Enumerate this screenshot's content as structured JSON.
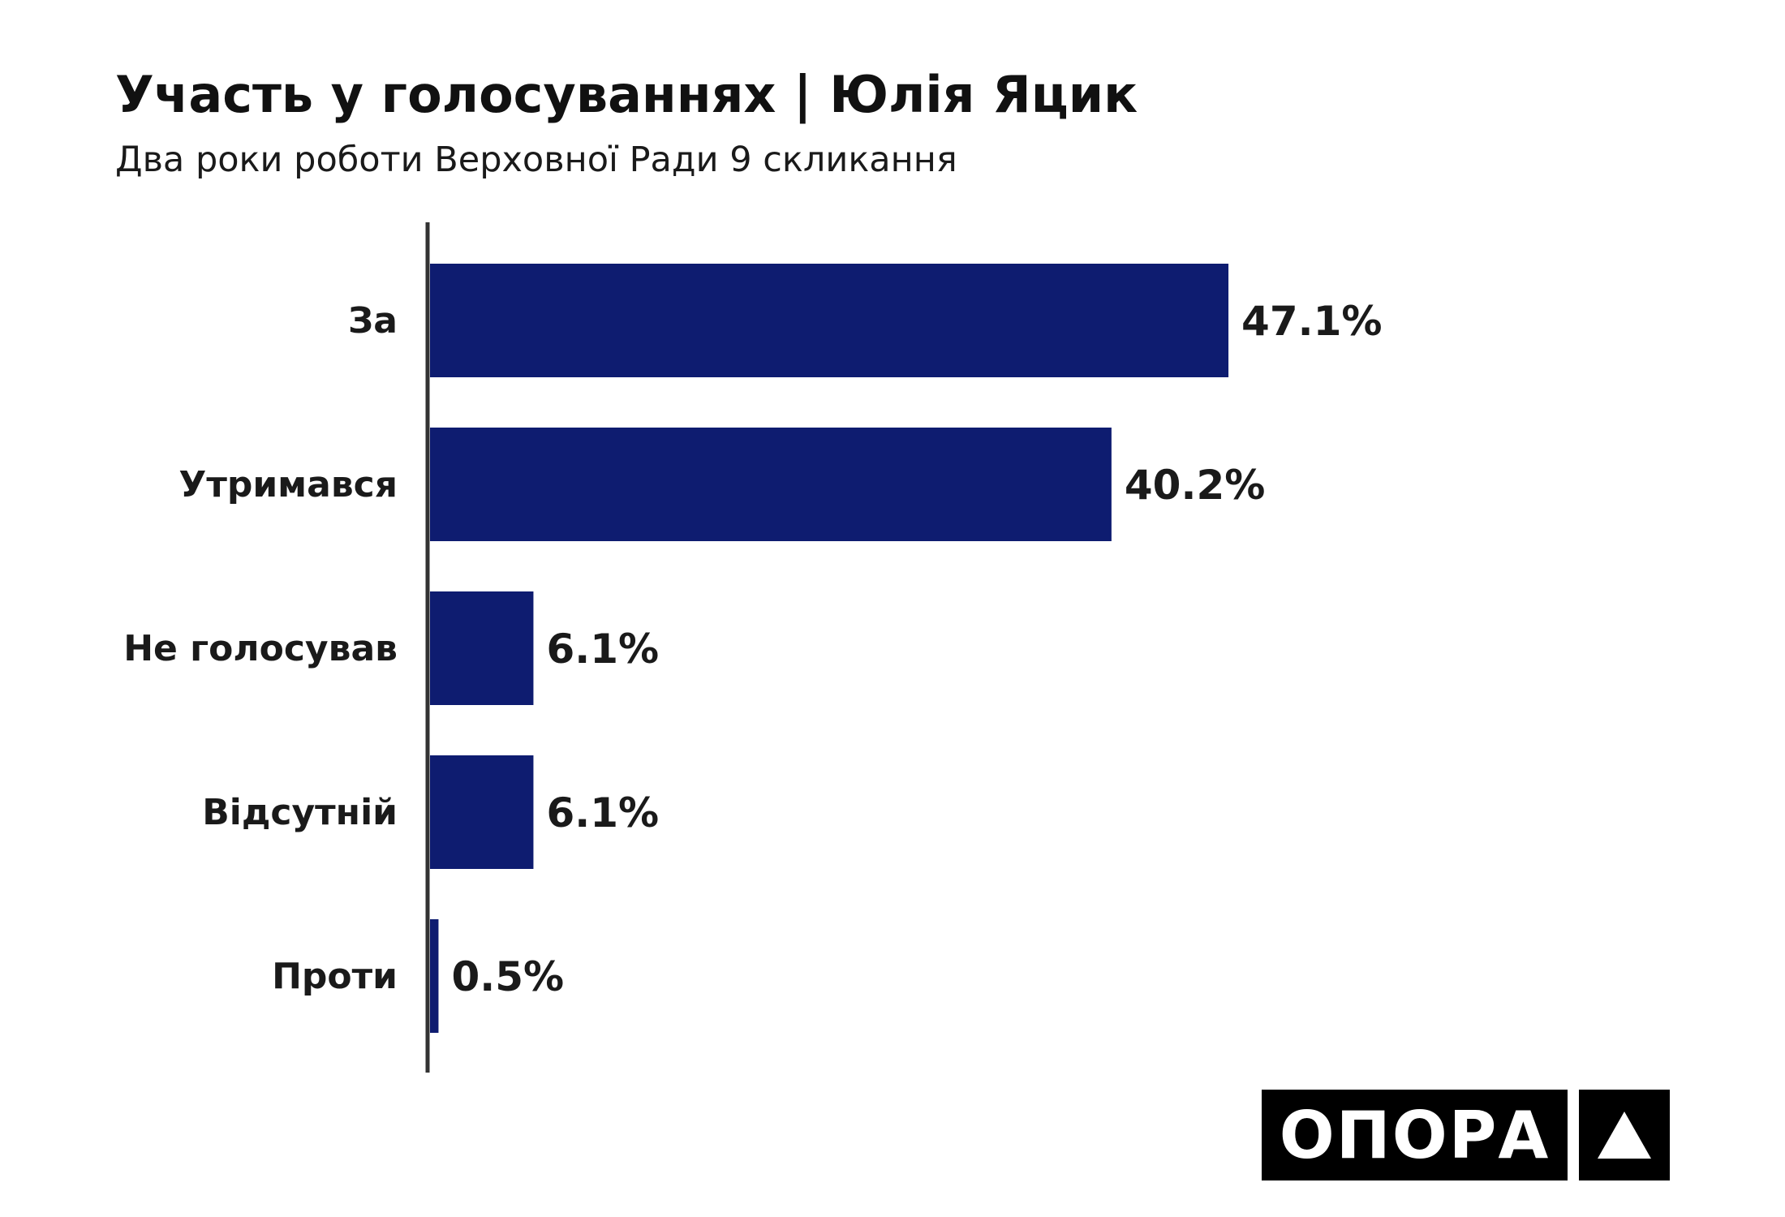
{
  "header": {
    "title": "Участь у голосуваннях | Юлія Яцик",
    "subtitle": "Два роки роботи Верховної Ради 9 скликання"
  },
  "chart_data": {
    "type": "bar",
    "orientation": "horizontal",
    "title": "Участь у голосуваннях | Юлія Яцик",
    "subtitle": "Два роки роботи Верховної Ради 9 скликання",
    "categories": [
      "За",
      "Утримався",
      "Не голосував",
      "Відсутній",
      "Проти"
    ],
    "values": [
      47.1,
      40.2,
      6.1,
      6.1,
      0.5
    ],
    "value_labels": [
      "47.1%",
      "40.2%",
      "6.1%",
      "6.1%",
      "0.5%"
    ],
    "unit": "%",
    "xlim": [
      0,
      56
    ],
    "grid": false,
    "bar_color": "#0e1c70",
    "axis_color": "#333333"
  },
  "logo": {
    "text": "ОПОРА",
    "icon": "triangle-up-icon"
  }
}
